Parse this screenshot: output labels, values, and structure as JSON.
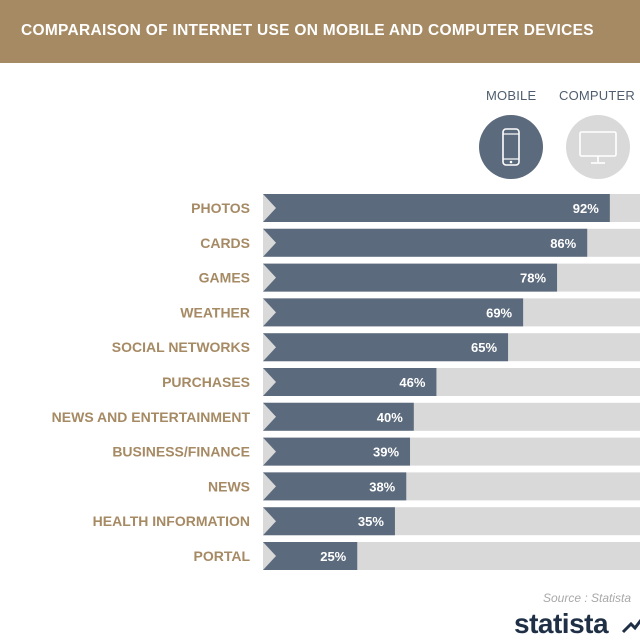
{
  "header": {
    "title": "COMPARAISON OF INTERNET USE ON MOBILE AND COMPUTER DEVICES",
    "background": "#a68a64"
  },
  "legend": {
    "mobile": {
      "label": "MOBILE",
      "color": "#5b6a7c",
      "icon": "smartphone-icon"
    },
    "computer": {
      "label": "COMPUTER",
      "color": "#d9d9d9",
      "icon": "monitor-icon"
    }
  },
  "chart_data": {
    "type": "bar",
    "orientation": "horizontal",
    "stacked": true,
    "categories": [
      "PHOTOS",
      "CARDS",
      "GAMES",
      "WEATHER",
      "SOCIAL NETWORKS",
      "PURCHASES",
      "NEWS AND ENTERTAINMENT",
      "BUSINESS/FINANCE",
      "NEWS",
      "HEALTH INFORMATION",
      "PORTAL"
    ],
    "series": [
      {
        "name": "MOBILE",
        "color": "#5b6a7c",
        "values": [
          92,
          86,
          78,
          69,
          65,
          46,
          40,
          39,
          38,
          35,
          25
        ]
      },
      {
        "name": "COMPUTER",
        "color": "#d9d9d9",
        "values": [
          8,
          14,
          22,
          31,
          35,
          54,
          60,
          61,
          62,
          65,
          75
        ]
      }
    ],
    "value_labels": [
      "92%",
      "86%",
      "78%",
      "69%",
      "65%",
      "46%",
      "40%",
      "39%",
      "38%",
      "35%",
      "25%"
    ],
    "xlim": [
      0,
      100
    ],
    "grid": false,
    "legend_position": "top-right"
  },
  "footer": {
    "source": "Source : Statista",
    "brand": "statista"
  }
}
